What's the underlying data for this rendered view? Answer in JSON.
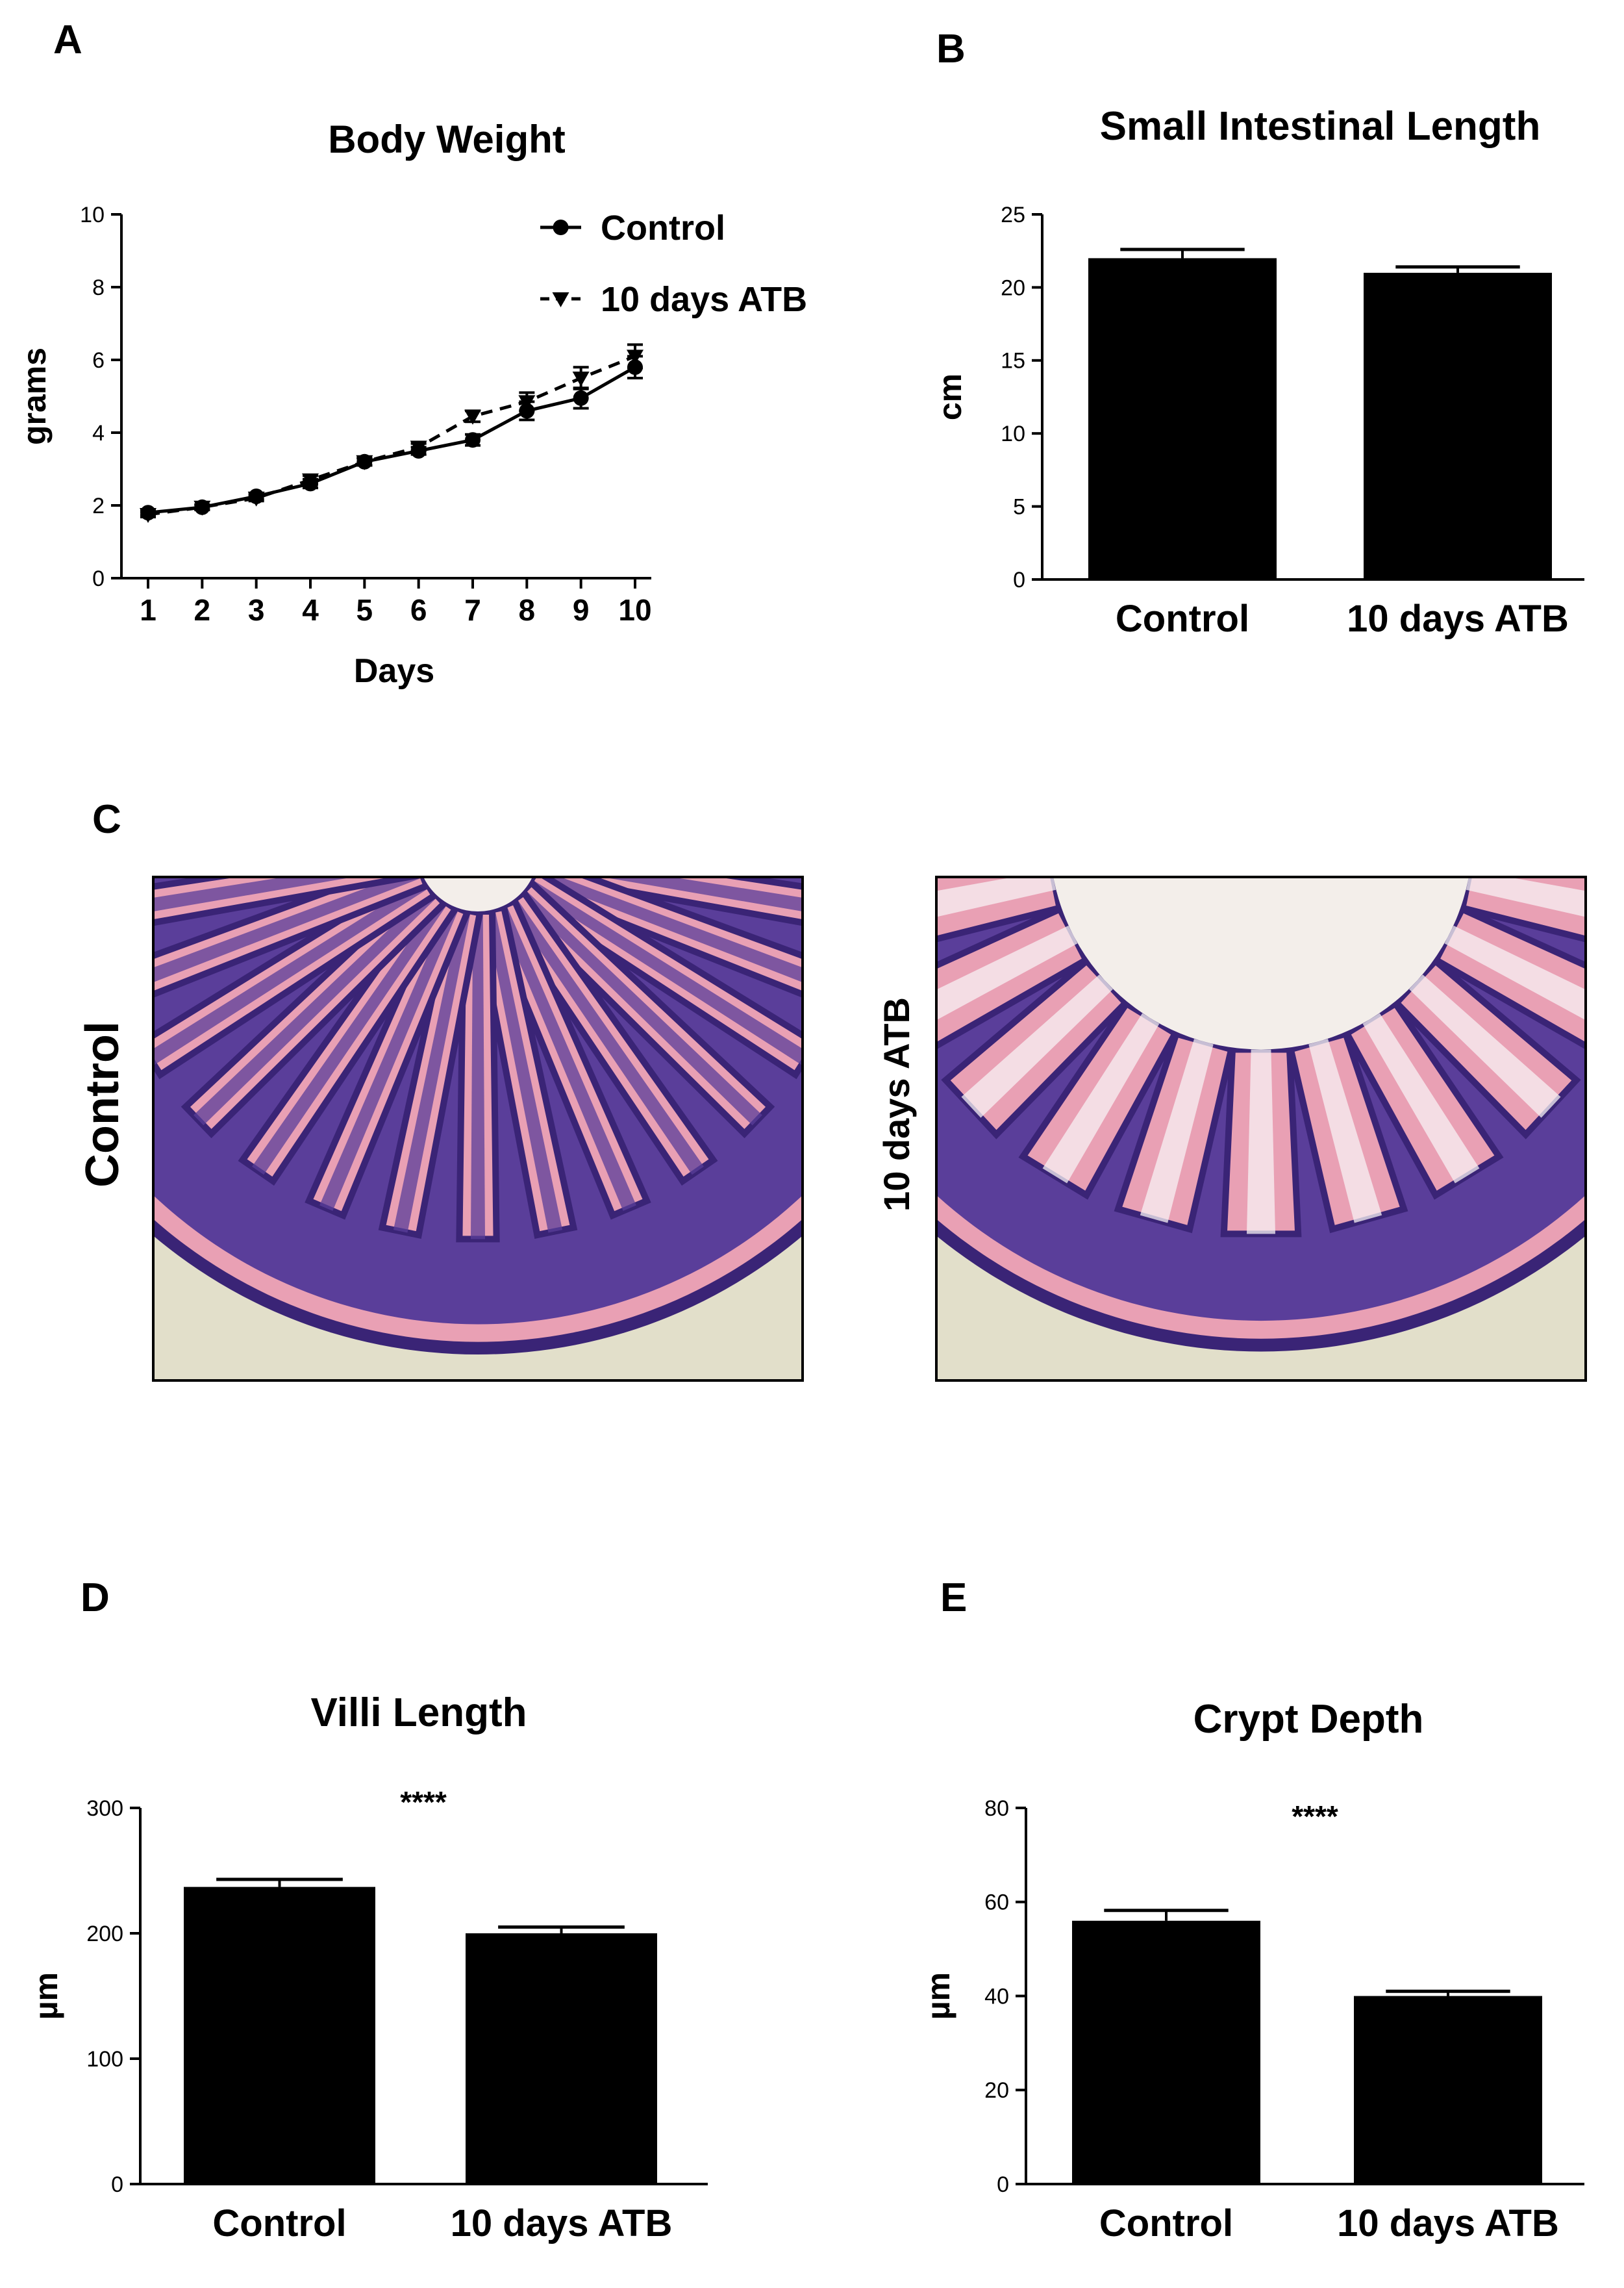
{
  "colors": {
    "ink": "#000000",
    "histo_bg": "#e2dfca",
    "histo_pink": "#e9a0b4",
    "histo_pink_light": "#f2c6d2",
    "histo_purple": "#5a3e9a",
    "histo_purple_dark": "#3a2476",
    "histo_lumen": "#f3eeea",
    "goblet_white": "#f7f2f4"
  },
  "panels": {
    "A": {
      "letter": "A"
    },
    "B": {
      "letter": "B"
    },
    "C": {
      "letter": "C",
      "left_label": "Control",
      "right_label": "10 days ATB"
    },
    "D": {
      "letter": "D"
    },
    "E": {
      "letter": "E"
    }
  },
  "chart_data": [
    {
      "id": "A",
      "type": "line",
      "title": "Body Weight",
      "xlabel": "Days",
      "ylabel": "grams",
      "x": [
        1,
        2,
        3,
        4,
        5,
        6,
        7,
        8,
        9,
        10
      ],
      "xticks": [
        "1",
        "2",
        "3",
        "4",
        "5",
        "6",
        "7",
        "8",
        "9",
        "10"
      ],
      "ylim": [
        0,
        10
      ],
      "yticks": [
        "0",
        "2",
        "4",
        "6",
        "8",
        "10"
      ],
      "legend_position": "top-right",
      "series": [
        {
          "name": "Control",
          "marker": "circle",
          "line": "solid",
          "values": [
            1.8,
            1.95,
            2.25,
            2.6,
            3.2,
            3.5,
            3.8,
            4.6,
            4.95,
            5.8
          ],
          "errors": [
            0.07,
            0.07,
            0.08,
            0.12,
            0.1,
            0.1,
            0.15,
            0.25,
            0.28,
            0.3
          ]
        },
        {
          "name": "10 days ATB",
          "marker": "triangle-down",
          "line": "dashed",
          "values": [
            1.75,
            1.95,
            2.2,
            2.7,
            3.2,
            3.6,
            4.45,
            4.85,
            5.5,
            6.1
          ],
          "errors": [
            0.07,
            0.07,
            0.08,
            0.12,
            0.1,
            0.1,
            0.15,
            0.25,
            0.3,
            0.32
          ]
        }
      ]
    },
    {
      "id": "B",
      "type": "bar",
      "title": "Small Intestinal Length",
      "xlabel": "",
      "ylabel": "cm",
      "categories": [
        "Control",
        "10 days ATB"
      ],
      "values": [
        22,
        21
      ],
      "errors": [
        0.6,
        0.4
      ],
      "ylim": [
        0,
        25
      ],
      "yticks": [
        "0",
        "5",
        "10",
        "15",
        "20",
        "25"
      ],
      "annotation": ""
    },
    {
      "id": "D",
      "type": "bar",
      "title": "Villi Length",
      "xlabel": "",
      "ylabel": "µm",
      "categories": [
        "Control",
        "10 days ATB"
      ],
      "values": [
        237,
        200
      ],
      "errors": [
        6,
        5
      ],
      "ylim": [
        0,
        300
      ],
      "yticks": [
        "0",
        "100",
        "200",
        "300"
      ],
      "annotation": "****"
    },
    {
      "id": "E",
      "type": "bar",
      "title": "Crypt Depth",
      "xlabel": "",
      "ylabel": "µm",
      "categories": [
        "Control",
        "10 days ATB"
      ],
      "values": [
        56,
        40
      ],
      "errors": [
        2.2,
        1.0
      ],
      "ylim": [
        0,
        80
      ],
      "yticks": [
        "0",
        "20",
        "40",
        "60",
        "80"
      ],
      "annotation": "****"
    }
  ]
}
